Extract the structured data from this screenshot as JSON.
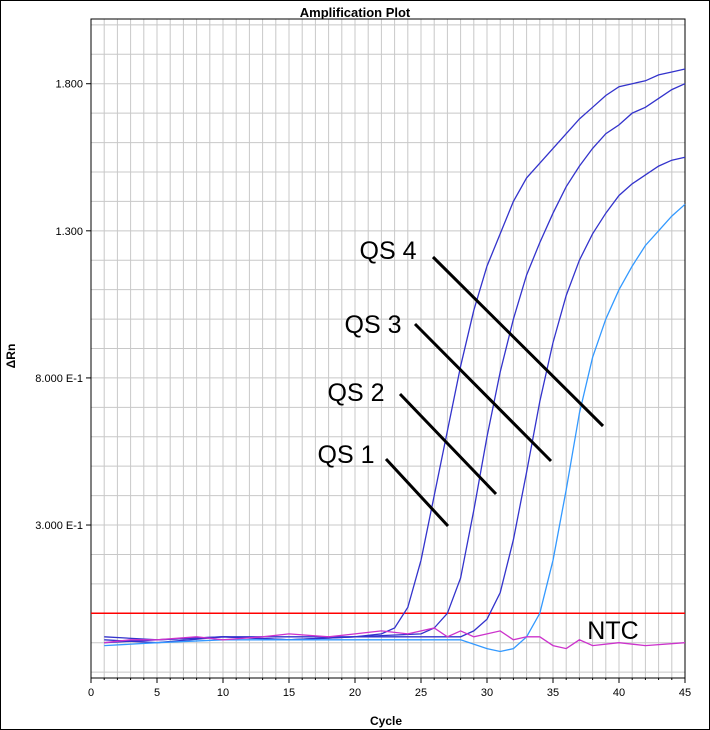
{
  "chart_data": {
    "type": "line",
    "title": "Amplification Plot",
    "xlabel": "Cycle",
    "ylabel": "ΔRn",
    "xlim": [
      0,
      45
    ],
    "ylim": [
      -0.22,
      2.02
    ],
    "x_ticks": [
      0,
      5,
      10,
      15,
      20,
      25,
      30,
      35,
      40,
      45
    ],
    "y_ticks": [
      {
        "value": 0.3,
        "label": "3.000 E-1"
      },
      {
        "value": 0.8,
        "label": "8.000 E-1"
      },
      {
        "value": 1.3,
        "label": "1.300"
      },
      {
        "value": 1.8,
        "label": "1.800"
      }
    ],
    "grid": true,
    "threshold": {
      "value": 0.0,
      "color": "#ff0000"
    },
    "series": [
      {
        "name": "QS 4",
        "color": "#3333cc",
        "x": [
          1,
          5,
          10,
          15,
          20,
          22,
          23,
          24,
          25,
          26,
          27,
          28,
          29,
          30,
          31,
          32,
          33,
          34,
          35,
          36,
          37,
          38,
          39,
          40,
          41,
          42,
          43,
          44,
          45
        ],
        "y": [
          -0.08,
          -0.09,
          -0.08,
          -0.08,
          -0.08,
          -0.07,
          -0.05,
          0.02,
          0.18,
          0.4,
          0.62,
          0.84,
          1.03,
          1.18,
          1.29,
          1.4,
          1.48,
          1.53,
          1.58,
          1.63,
          1.68,
          1.72,
          1.76,
          1.79,
          1.8,
          1.81,
          1.83,
          1.84,
          1.85
        ]
      },
      {
        "name": "QS 3",
        "color": "#3333cc",
        "x": [
          1,
          5,
          10,
          15,
          20,
          25,
          26,
          27,
          28,
          29,
          30,
          31,
          32,
          33,
          34,
          35,
          36,
          37,
          38,
          39,
          40,
          41,
          42,
          43,
          44,
          45
        ],
        "y": [
          -0.09,
          -0.1,
          -0.08,
          -0.09,
          -0.08,
          -0.07,
          -0.05,
          0.0,
          0.12,
          0.35,
          0.6,
          0.82,
          1.0,
          1.15,
          1.26,
          1.36,
          1.45,
          1.52,
          1.58,
          1.63,
          1.66,
          1.7,
          1.72,
          1.75,
          1.78,
          1.8
        ]
      },
      {
        "name": "QS 2",
        "color": "#3333cc",
        "x": [
          1,
          5,
          10,
          15,
          20,
          25,
          28,
          29,
          30,
          31,
          32,
          33,
          34,
          35,
          36,
          37,
          38,
          39,
          40,
          41,
          42,
          43,
          44,
          45
        ],
        "y": [
          -0.1,
          -0.09,
          -0.08,
          -0.09,
          -0.08,
          -0.08,
          -0.08,
          -0.06,
          -0.02,
          0.07,
          0.25,
          0.48,
          0.72,
          0.92,
          1.08,
          1.2,
          1.29,
          1.36,
          1.42,
          1.46,
          1.49,
          1.52,
          1.54,
          1.55
        ]
      },
      {
        "name": "QS 1",
        "color": "#3399ff",
        "x": [
          1,
          5,
          10,
          15,
          20,
          25,
          28,
          30,
          31,
          32,
          33,
          34,
          35,
          36,
          37,
          38,
          39,
          40,
          41,
          42,
          43,
          44,
          45
        ],
        "y": [
          -0.11,
          -0.1,
          -0.09,
          -0.09,
          -0.09,
          -0.09,
          -0.09,
          -0.12,
          -0.13,
          -0.12,
          -0.08,
          0.0,
          0.18,
          0.42,
          0.68,
          0.87,
          1.0,
          1.1,
          1.18,
          1.25,
          1.3,
          1.35,
          1.39
        ]
      },
      {
        "name": "NTC",
        "color": "#cc33cc",
        "x": [
          1,
          3,
          5,
          8,
          10,
          13,
          15,
          18,
          20,
          22,
          24,
          26,
          27,
          28,
          29,
          30,
          31,
          32,
          33,
          34,
          35,
          36,
          37,
          38,
          40,
          42,
          45
        ],
        "y": [
          -0.1,
          -0.09,
          -0.09,
          -0.08,
          -0.09,
          -0.08,
          -0.07,
          -0.08,
          -0.07,
          -0.06,
          -0.07,
          -0.05,
          -0.08,
          -0.06,
          -0.08,
          -0.07,
          -0.06,
          -0.09,
          -0.08,
          -0.08,
          -0.11,
          -0.12,
          -0.09,
          -0.11,
          -0.1,
          -0.11,
          -0.1
        ]
      }
    ],
    "annotations": [
      {
        "text": "QS 4",
        "series": "QS 4"
      },
      {
        "text": "QS 3",
        "series": "QS 3"
      },
      {
        "text": "QS 2",
        "series": "QS 2"
      },
      {
        "text": "QS 1",
        "series": "QS 1"
      },
      {
        "text": "NTC",
        "series": "NTC"
      }
    ]
  }
}
